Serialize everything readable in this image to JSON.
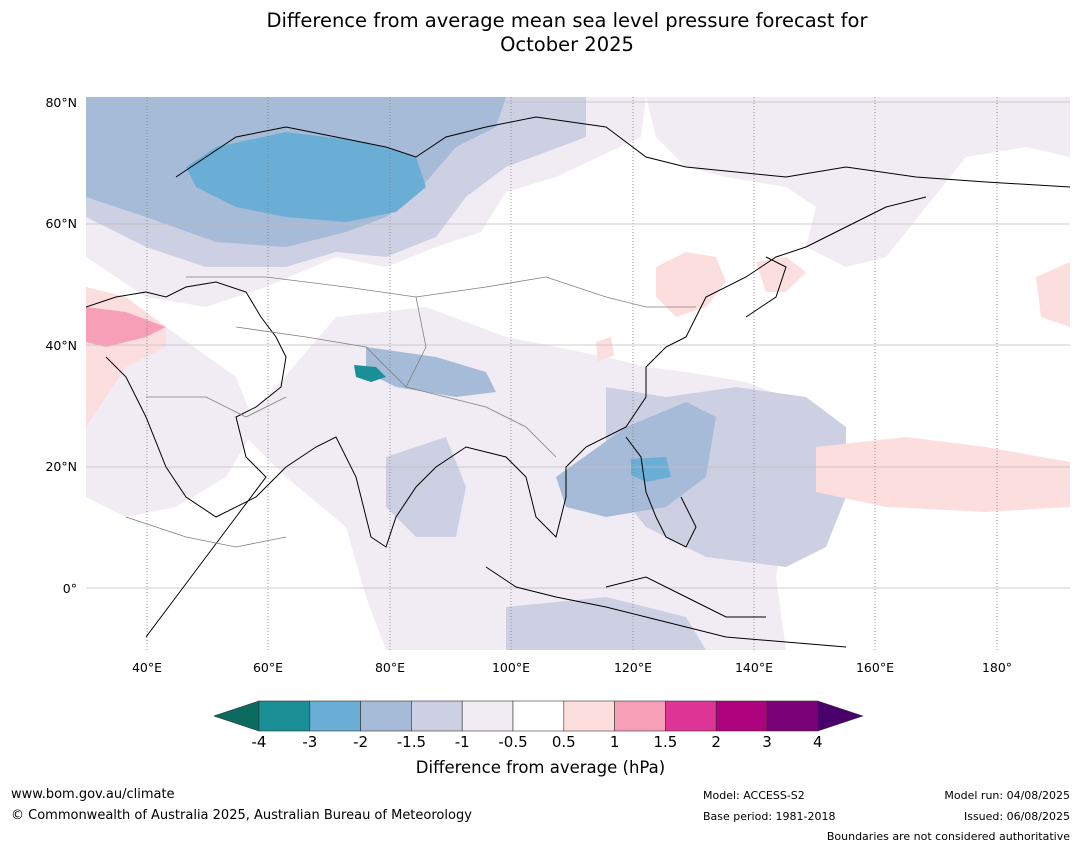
{
  "title": {
    "line1": "Difference from average mean sea level pressure forecast for",
    "line2": "October 2025"
  },
  "map": {
    "lat_labels": [
      "80°N",
      "60°N",
      "40°N",
      "20°N",
      "0°"
    ],
    "lon_labels": [
      "40°E",
      "60°E",
      "80°E",
      "100°E",
      "120°E",
      "140°E",
      "160°E",
      "180°"
    ],
    "extent": {
      "lon_min": 30,
      "lon_max": 192,
      "lat_min": -10,
      "lat_max": 81
    }
  },
  "colorbar": {
    "ticks": [
      "-4",
      "-3",
      "-2",
      "-1.5",
      "-1",
      "-0.5",
      "0.5",
      "1",
      "1.5",
      "2",
      "3",
      "4"
    ],
    "colors": [
      "#1a8f95",
      "#6aadd5",
      "#a6bbd7",
      "#cdd0e3",
      "#f1ecf4",
      "#ffffff",
      "#fddede",
      "#f89fb8",
      "#dd3496",
      "#ae017e",
      "#7a0177"
    ],
    "under_color": "#0a6b5e",
    "over_color": "#49006a",
    "label": "Difference from average (hPa)"
  },
  "footer": {
    "url": "www.bom.gov.au/climate",
    "copyright": "© Commonwealth of Australia 2025, Australian Bureau of Meteorology",
    "model": "Model: ACCESS-S2",
    "base_period": "Base period: 1981-2018",
    "model_run": "Model run: 04/08/2025",
    "issued": "Issued: 06/08/2025",
    "disclaimer": "Boundaries are not considered authoritative"
  }
}
